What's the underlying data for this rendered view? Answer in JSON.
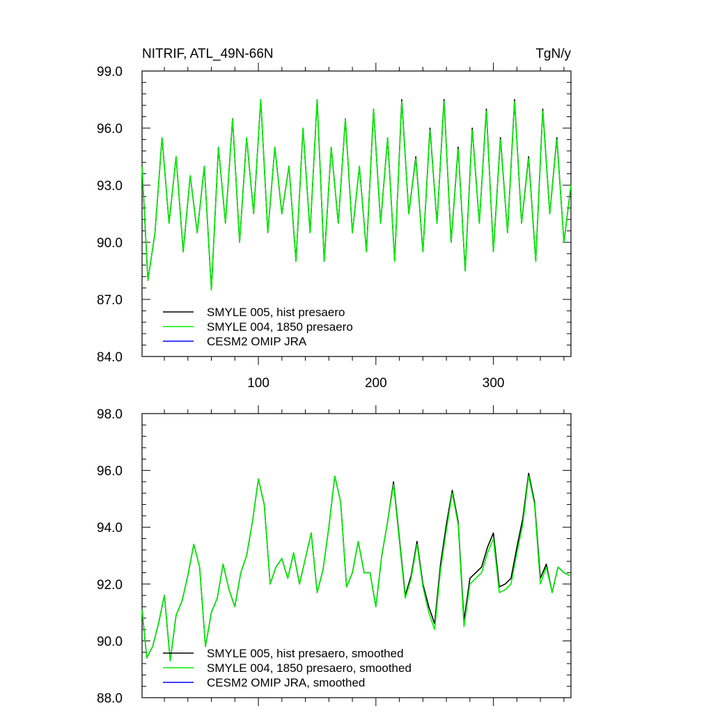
{
  "chart_data": [
    {
      "type": "line",
      "title_left": "NITRIF, ATL_49N-66N",
      "title_right": "TgN/y",
      "xlim": [
        1,
        366
      ],
      "ylim": [
        84,
        99
      ],
      "x_ticks": [
        100,
        200,
        300
      ],
      "x_tick_labels": [
        "100",
        "200",
        "300"
      ],
      "y_ticks": [
        84,
        87,
        90,
        93,
        96,
        99
      ],
      "y_tick_labels": [
        "84.0",
        "87.0",
        "90.0",
        "93.0",
        "96.0",
        "99.0"
      ],
      "legend": "bottom-left",
      "series": [
        {
          "name": "SMYLE 005, hist presaero",
          "color": "#000000",
          "x": [
            1,
            6,
            12,
            18,
            24,
            30,
            36,
            42,
            48,
            54,
            60,
            66,
            72,
            78,
            84,
            90,
            96,
            102,
            108,
            114,
            120,
            126,
            132,
            138,
            144,
            150,
            156,
            162,
            168,
            174,
            180,
            186,
            192,
            198,
            204,
            210,
            216,
            222,
            228,
            234,
            240,
            246,
            252,
            258,
            264,
            270,
            276,
            282,
            288,
            294,
            300,
            306,
            312,
            318,
            324,
            330,
            336,
            342,
            348,
            354,
            360,
            366
          ],
          "values": [
            94.0,
            88.0,
            90.5,
            95.5,
            91.0,
            94.5,
            89.5,
            93.5,
            90.5,
            94.0,
            87.5,
            95.0,
            91.0,
            96.5,
            90.0,
            95.5,
            91.5,
            97.5,
            90.5,
            95.0,
            91.5,
            94.0,
            89.0,
            96.0,
            90.5,
            97.5,
            89.0,
            95.0,
            91.0,
            96.5,
            90.5,
            94.0,
            89.5,
            97.0,
            91.0,
            95.5,
            89.0,
            97.5,
            91.5,
            94.5,
            89.5,
            96.0,
            91.0,
            97.5,
            90.0,
            95.0,
            88.5,
            96.0,
            91.0,
            97.0,
            89.5,
            95.5,
            90.5,
            97.5,
            91.0,
            94.5,
            89.0,
            97.0,
            91.5,
            95.5,
            90.0,
            93.0
          ]
        },
        {
          "name": "SMYLE 004, 1850 presaero",
          "color": "#00ee00",
          "x": [
            1,
            6,
            12,
            18,
            24,
            30,
            36,
            42,
            48,
            54,
            60,
            66,
            72,
            78,
            84,
            90,
            96,
            102,
            108,
            114,
            120,
            126,
            132,
            138,
            144,
            150,
            156,
            162,
            168,
            174,
            180,
            186,
            192,
            198,
            204,
            210,
            216,
            222,
            228,
            234,
            240,
            246,
            252,
            258,
            264,
            270,
            276,
            282,
            288,
            294,
            300,
            306,
            312,
            318,
            324,
            330,
            336,
            342,
            348,
            354,
            360,
            366
          ],
          "values": [
            94.0,
            88.0,
            90.5,
            95.5,
            91.0,
            94.5,
            89.5,
            93.5,
            90.5,
            94.0,
            87.5,
            95.0,
            91.0,
            96.5,
            90.0,
            95.5,
            91.5,
            97.5,
            90.5,
            95.0,
            91.5,
            94.0,
            89.0,
            96.0,
            90.5,
            97.5,
            89.0,
            95.0,
            91.0,
            96.5,
            90.5,
            94.0,
            89.5,
            97.0,
            91.0,
            95.5,
            89.0,
            97.4,
            91.5,
            94.4,
            89.5,
            95.9,
            91.0,
            97.4,
            90.0,
            94.9,
            88.5,
            95.9,
            91.0,
            96.9,
            89.5,
            95.4,
            90.5,
            97.4,
            91.0,
            94.4,
            89.0,
            96.9,
            91.5,
            95.4,
            90.0,
            93.0
          ]
        },
        {
          "name": "CESM2 OMIP JRA",
          "color": "#0000ff",
          "x": [],
          "values": []
        }
      ]
    },
    {
      "type": "line",
      "xlim": [
        1,
        366
      ],
      "ylim": [
        88,
        98
      ],
      "x_ticks": [
        100,
        200,
        300
      ],
      "x_tick_labels": [],
      "y_ticks": [
        88,
        90,
        92,
        94,
        96,
        98
      ],
      "y_tick_labels": [
        "88.0",
        "90.0",
        "92.0",
        "94.0",
        "96.0",
        "98.0"
      ],
      "legend": "bottom-left",
      "series": [
        {
          "name": "SMYLE 005, hist presaero, smoothed",
          "color": "#000000",
          "x": [
            1,
            5,
            10,
            15,
            20,
            25,
            30,
            35,
            40,
            45,
            50,
            55,
            60,
            65,
            70,
            75,
            80,
            85,
            90,
            95,
            100,
            105,
            110,
            115,
            120,
            125,
            130,
            135,
            140,
            145,
            150,
            155,
            160,
            165,
            170,
            175,
            180,
            185,
            190,
            195,
            200,
            205,
            210,
            215,
            220,
            225,
            230,
            235,
            240,
            245,
            250,
            255,
            260,
            265,
            270,
            275,
            280,
            285,
            290,
            295,
            300,
            305,
            310,
            315,
            320,
            325,
            330,
            335,
            340,
            345,
            350,
            355,
            360,
            365
          ],
          "values": [
            91.1,
            89.4,
            89.8,
            90.6,
            91.6,
            89.3,
            90.9,
            91.4,
            92.3,
            93.4,
            92.6,
            89.8,
            91.0,
            91.5,
            92.7,
            91.8,
            91.2,
            92.4,
            93.0,
            94.2,
            95.7,
            94.8,
            92.0,
            92.6,
            92.9,
            92.2,
            93.1,
            92.0,
            92.9,
            93.8,
            91.7,
            92.5,
            94.0,
            95.8,
            94.9,
            91.9,
            92.4,
            93.5,
            92.4,
            92.4,
            91.2,
            93.0,
            94.2,
            95.6,
            93.6,
            91.6,
            92.3,
            93.5,
            92.0,
            91.2,
            90.6,
            92.7,
            94.1,
            95.3,
            94.2,
            90.7,
            92.2,
            92.4,
            92.6,
            93.3,
            93.8,
            91.9,
            92.0,
            92.2,
            93.3,
            94.3,
            95.9,
            94.9,
            92.2,
            92.7,
            91.7,
            92.6,
            92.4,
            92.3
          ]
        },
        {
          "name": "SMYLE 004, 1850 presaero, smoothed",
          "color": "#00ee00",
          "x": [
            1,
            5,
            10,
            15,
            20,
            25,
            30,
            35,
            40,
            45,
            50,
            55,
            60,
            65,
            70,
            75,
            80,
            85,
            90,
            95,
            100,
            105,
            110,
            115,
            120,
            125,
            130,
            135,
            140,
            145,
            150,
            155,
            160,
            165,
            170,
            175,
            180,
            185,
            190,
            195,
            200,
            205,
            210,
            215,
            220,
            225,
            230,
            235,
            240,
            245,
            250,
            255,
            260,
            265,
            270,
            275,
            280,
            285,
            290,
            295,
            300,
            305,
            310,
            315,
            320,
            325,
            330,
            335,
            340,
            345,
            350,
            355,
            360,
            365
          ],
          "values": [
            91.1,
            89.4,
            89.8,
            90.6,
            91.6,
            89.3,
            90.9,
            91.4,
            92.3,
            93.4,
            92.6,
            89.8,
            91.0,
            91.5,
            92.7,
            91.8,
            91.2,
            92.4,
            93.0,
            94.2,
            95.7,
            94.8,
            92.0,
            92.6,
            92.9,
            92.2,
            93.1,
            92.0,
            92.9,
            93.8,
            91.7,
            92.5,
            94.0,
            95.8,
            94.9,
            91.9,
            92.4,
            93.5,
            92.4,
            92.4,
            91.2,
            93.0,
            94.2,
            95.5,
            93.5,
            91.5,
            92.2,
            93.4,
            91.9,
            91.0,
            90.4,
            92.5,
            93.9,
            95.2,
            94.1,
            90.5,
            92.0,
            92.2,
            92.4,
            93.1,
            93.6,
            91.7,
            91.8,
            92.0,
            93.1,
            94.1,
            95.8,
            94.8,
            92.0,
            92.6,
            91.7,
            92.6,
            92.4,
            92.3
          ]
        },
        {
          "name": "CESM2 OMIP JRA, smoothed",
          "color": "#0000ff",
          "x": [],
          "values": []
        }
      ]
    }
  ]
}
